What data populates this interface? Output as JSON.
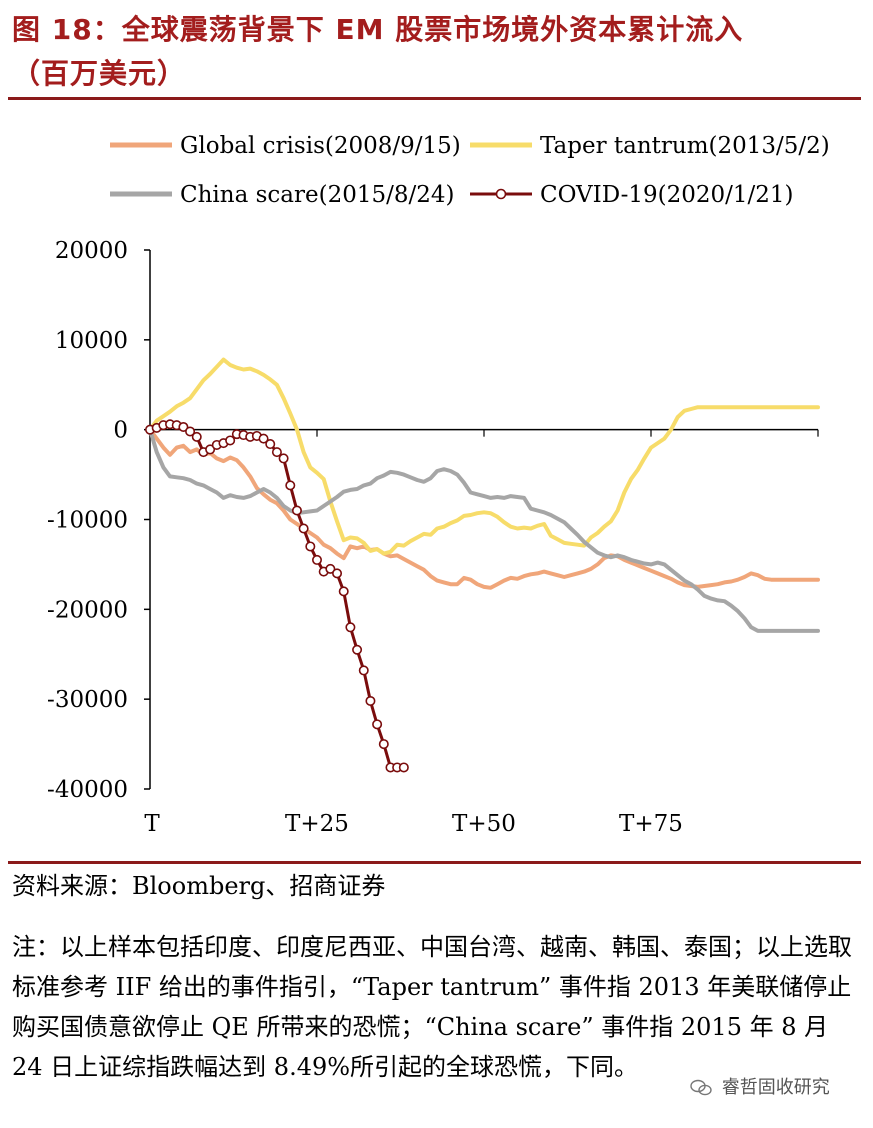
{
  "header": {
    "title_line1": "图 18：全球震荡背景下 EM 股票市场境外资本累计流入",
    "title_line2": "（百万美元）"
  },
  "footer": {
    "source": "资料来源：Bloomberg、招商证券",
    "note": "注：以上样本包括印度、印度尼西亚、中国台湾、越南、韩国、泰国；以上选取标准参考 IIF 给出的事件指引，“Taper tantrum” 事件指 2013 年美联储停止购买国债意欲停止 QE 所带来的恐慌；“China scare” 事件指 2015 年 8 月 24 日上证综指跌幅达到 8.49%所引起的全球恐慌，下同。",
    "watermark": "睿哲固收研究"
  },
  "chart_data": {
    "type": "line",
    "title": "",
    "xlabel": "",
    "ylabel": "",
    "xlim": [
      0,
      100
    ],
    "ylim": [
      -40000,
      20000
    ],
    "yticks": [
      20000,
      10000,
      0,
      -10000,
      -20000,
      -30000,
      -40000
    ],
    "ytick_labels": [
      "20000",
      "10000",
      "0",
      "-10000",
      "-20000",
      "-30000",
      "-40000"
    ],
    "xticks": [
      0,
      25,
      50,
      75
    ],
    "xtick_labels": [
      "T",
      "T+25",
      "T+50",
      "T+75"
    ],
    "legend_position": "top",
    "series": [
      {
        "name": "Global crisis(2008/9/15)",
        "color": "#f0a67a",
        "marker": "none",
        "x": [
          0,
          1,
          2,
          3,
          4,
          5,
          6,
          7,
          8,
          9,
          10,
          11,
          12,
          13,
          14,
          15,
          16,
          17,
          18,
          19,
          20,
          21,
          22,
          23,
          24,
          25,
          26,
          27,
          28,
          29,
          30,
          31,
          32,
          33,
          34,
          35,
          36,
          37,
          38,
          39,
          40,
          41,
          42,
          43,
          44,
          45,
          46,
          47,
          48,
          49,
          50,
          51,
          52,
          53,
          54,
          55,
          56,
          57,
          58,
          59,
          60,
          61,
          62,
          63,
          64,
          65,
          66,
          67,
          68,
          69,
          70,
          71,
          72,
          73,
          74,
          75,
          76,
          77,
          78,
          79,
          80,
          81,
          82,
          83,
          84,
          85,
          86,
          87,
          88,
          89,
          90,
          91,
          92,
          93,
          94,
          95,
          96,
          97,
          98,
          99,
          100
        ],
        "values": [
          0,
          -1000,
          -2000,
          -2800,
          -2000,
          -1800,
          -2500,
          -2200,
          -2800,
          -2600,
          -3200,
          -3500,
          -3100,
          -3400,
          -4200,
          -5200,
          -6500,
          -7200,
          -7800,
          -8200,
          -9000,
          -10000,
          -10500,
          -11000,
          -11500,
          -12000,
          -12800,
          -13200,
          -13800,
          -14300,
          -13000,
          -13200,
          -13000,
          -13400,
          -13300,
          -13800,
          -14100,
          -14000,
          -14400,
          -14800,
          -15200,
          -15600,
          -16300,
          -16800,
          -17000,
          -17200,
          -17200,
          -16500,
          -16700,
          -17200,
          -17500,
          -17600,
          -17200,
          -16800,
          -16500,
          -16600,
          -16300,
          -16100,
          -16000,
          -15800,
          -16000,
          -16200,
          -16400,
          -16200,
          -16000,
          -15800,
          -15500,
          -15000,
          -14300,
          -14000,
          -14100,
          -14500,
          -14800,
          -15100,
          -15400,
          -15700,
          -16000,
          -16300,
          -16600,
          -17000,
          -17300,
          -17400,
          -17500,
          -17400,
          -17300,
          -17200,
          -17000,
          -16900,
          -16700,
          -16400,
          -16000,
          -16200,
          -16600,
          -16700,
          -16700,
          -16700,
          -16700,
          -16700,
          -16700,
          -16700,
          -16700
        ]
      },
      {
        "name": "Taper tantrum(2013/5/2)",
        "color": "#f7dc6a",
        "marker": "none",
        "x": [
          0,
          1,
          2,
          3,
          4,
          5,
          6,
          7,
          8,
          9,
          10,
          11,
          12,
          13,
          14,
          15,
          16,
          17,
          18,
          19,
          20,
          21,
          22,
          23,
          24,
          25,
          26,
          27,
          28,
          29,
          30,
          31,
          32,
          33,
          34,
          35,
          36,
          37,
          38,
          39,
          40,
          41,
          42,
          43,
          44,
          45,
          46,
          47,
          48,
          49,
          50,
          51,
          52,
          53,
          54,
          55,
          56,
          57,
          58,
          59,
          60,
          61,
          62,
          63,
          64,
          65,
          66,
          67,
          68,
          69,
          70,
          71,
          72,
          73,
          74,
          75,
          76,
          77,
          78,
          79,
          80,
          81,
          82,
          83,
          84,
          85,
          86,
          87,
          88,
          89,
          90,
          91,
          92,
          93,
          94,
          95,
          96,
          97,
          98,
          99,
          100
        ],
        "values": [
          0,
          1000,
          1500,
          2000,
          2600,
          3000,
          3500,
          4500,
          5500,
          6200,
          7000,
          7800,
          7200,
          6900,
          6700,
          6800,
          6500,
          6100,
          5600,
          5000,
          3500,
          1800,
          0,
          -2500,
          -4200,
          -4800,
          -5500,
          -8000,
          -10200,
          -12300,
          -12000,
          -12100,
          -12600,
          -13500,
          -13300,
          -13800,
          -13600,
          -12800,
          -12900,
          -12400,
          -12000,
          -11600,
          -11700,
          -11000,
          -10800,
          -10400,
          -10100,
          -9600,
          -9500,
          -9300,
          -9200,
          -9300,
          -9700,
          -10300,
          -10800,
          -11000,
          -10900,
          -11000,
          -10700,
          -10500,
          -11800,
          -12200,
          -12600,
          -12700,
          -12800,
          -12900,
          -12000,
          -11500,
          -10800,
          -10200,
          -9000,
          -7000,
          -5500,
          -4500,
          -3200,
          -2000,
          -1500,
          -1000,
          0,
          1400,
          2100,
          2300,
          2500,
          2500,
          2500,
          2500,
          2500,
          2500,
          2500,
          2500,
          2500,
          2500,
          2500,
          2500,
          2500,
          2500,
          2500,
          2500,
          2500,
          2500,
          2500
        ]
      },
      {
        "name": "China scare(2015/8/24)",
        "color": "#a6a6a6",
        "marker": "none",
        "x": [
          0,
          1,
          2,
          3,
          4,
          5,
          6,
          7,
          8,
          9,
          10,
          11,
          12,
          13,
          14,
          15,
          16,
          17,
          18,
          19,
          20,
          21,
          22,
          23,
          24,
          25,
          26,
          27,
          28,
          29,
          30,
          31,
          32,
          33,
          34,
          35,
          36,
          37,
          38,
          39,
          40,
          41,
          42,
          43,
          44,
          45,
          46,
          47,
          48,
          49,
          50,
          51,
          52,
          53,
          54,
          55,
          56,
          57,
          58,
          59,
          60,
          61,
          62,
          63,
          64,
          65,
          66,
          67,
          68,
          69,
          70,
          71,
          72,
          73,
          74,
          75,
          76,
          77,
          78,
          79,
          80,
          81,
          82,
          83,
          84,
          85,
          86,
          87,
          88,
          89,
          90,
          91,
          92,
          93,
          94,
          95,
          96,
          97,
          98,
          99,
          100
        ],
        "values": [
          0,
          -2500,
          -4200,
          -5200,
          -5300,
          -5400,
          -5600,
          -6000,
          -6200,
          -6600,
          -7000,
          -7600,
          -7300,
          -7500,
          -7600,
          -7400,
          -7000,
          -6600,
          -7000,
          -7600,
          -8500,
          -9000,
          -9300,
          -9200,
          -9100,
          -9000,
          -8500,
          -8000,
          -7500,
          -6900,
          -6700,
          -6600,
          -6200,
          -6000,
          -5400,
          -5100,
          -4700,
          -4800,
          -5000,
          -5300,
          -5600,
          -5800,
          -5400,
          -4600,
          -4400,
          -4600,
          -5000,
          -5900,
          -7000,
          -7200,
          -7400,
          -7600,
          -7500,
          -7600,
          -7400,
          -7500,
          -7600,
          -8800,
          -9000,
          -9200,
          -9500,
          -9900,
          -10300,
          -11000,
          -11700,
          -12500,
          -13100,
          -13700,
          -14000,
          -14200,
          -14000,
          -14200,
          -14500,
          -14700,
          -14900,
          -15000,
          -14800,
          -15000,
          -15600,
          -16200,
          -16800,
          -17200,
          -17800,
          -18500,
          -18800,
          -19000,
          -19100,
          -19600,
          -20200,
          -21000,
          -22000,
          -22400,
          -22400,
          -22400,
          -22400,
          -22400,
          -22400,
          -22400,
          -22400,
          -22400,
          -22400
        ]
      },
      {
        "name": "COVID-19(2020/1/21)",
        "color": "#7a0c0c",
        "marker": "circle",
        "x": [
          0,
          1,
          2,
          3,
          4,
          5,
          6,
          7,
          8,
          9,
          10,
          11,
          12,
          13,
          14,
          15,
          16,
          17,
          18,
          19,
          20,
          21,
          22,
          23,
          24,
          25,
          26,
          27,
          28,
          29,
          30,
          31,
          32,
          33,
          34,
          35,
          36,
          37,
          38
        ],
        "values": [
          0,
          200,
          500,
          600,
          500,
          300,
          -200,
          -800,
          -2500,
          -2200,
          -1700,
          -1500,
          -1200,
          -500,
          -600,
          -800,
          -700,
          -1000,
          -1600,
          -2500,
          -3200,
          -6200,
          -9000,
          -11000,
          -13000,
          -14500,
          -15800,
          -15500,
          -16000,
          -18000,
          -22000,
          -24500,
          -26800,
          -30200,
          -32800,
          -35000,
          -37600,
          -37600,
          -37600
        ]
      }
    ]
  }
}
